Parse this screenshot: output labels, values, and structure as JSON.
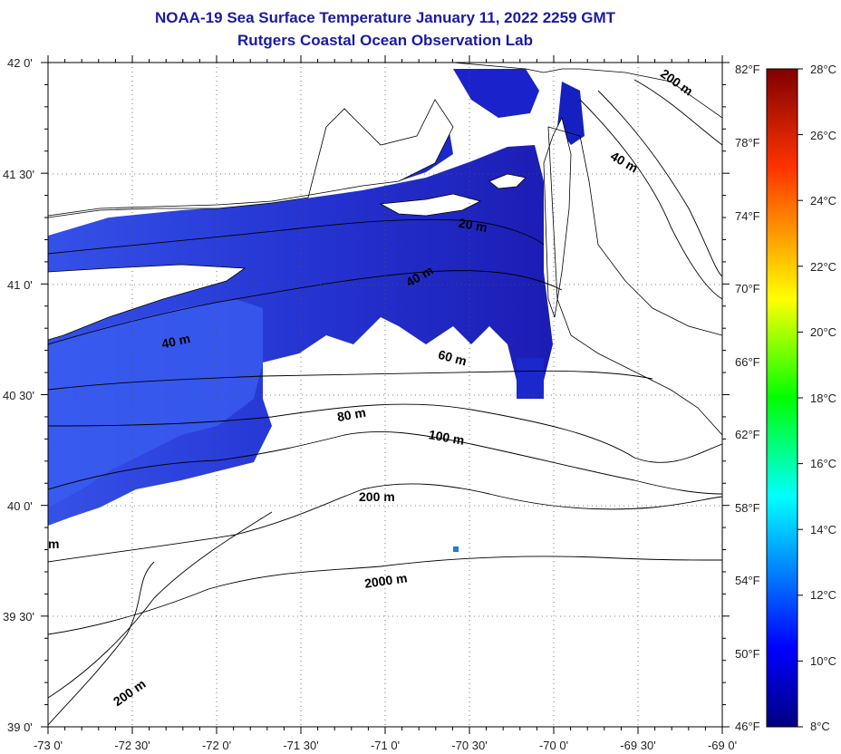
{
  "title": {
    "line1": "NOAA-19 Sea Surface Temperature January 11, 2022 2259 GMT",
    "line2": "Rutgers Coastal Ocean Observation Lab"
  },
  "axes": {
    "lat_labels": [
      "42 0'",
      "41 30'",
      "41 0'",
      "40 30'",
      "40 0'",
      "39 30'",
      "39 0'"
    ],
    "lon_labels": [
      "-73 0'",
      "-72 30'",
      "-72 0'",
      "-71 30'",
      "-71 0'",
      "-70 30'",
      "-70 0'",
      "-69 30'",
      "-69 0'"
    ],
    "fahrenheit_labels": [
      "82°F",
      "78°F",
      "74°F",
      "70°F",
      "66°F",
      "62°F",
      "58°F",
      "54°F",
      "50°F",
      "46°F"
    ]
  },
  "colorbar": {
    "celsius_labels": [
      "28°C",
      "26°C",
      "24°C",
      "22°C",
      "20°C",
      "18°C",
      "16°C",
      "14°C",
      "12°C",
      "10°C",
      "8°C"
    ]
  },
  "isobaths": {
    "labels": [
      "200 m",
      "40 m",
      "20 m",
      "40 m",
      "40 m",
      "60 m",
      "80 m",
      "100 m",
      "200 m",
      "2000 m",
      "200 m",
      "m"
    ]
  }
}
